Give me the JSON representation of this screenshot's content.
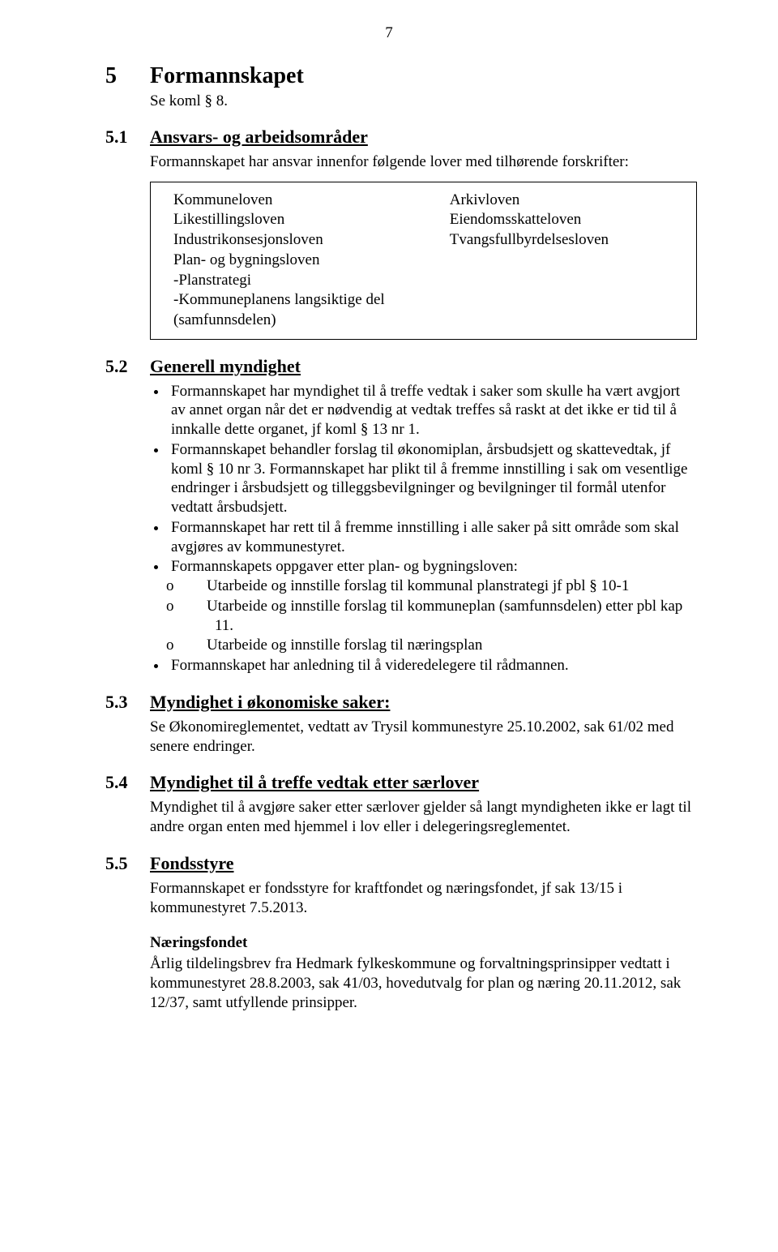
{
  "page_number": "7",
  "colors": {
    "text": "#000000",
    "background": "#ffffff",
    "border": "#000000"
  },
  "typography": {
    "body_fontsize": 19,
    "h1_fontsize": 28,
    "h2_fontsize": 22,
    "font_family": "Times New Roman"
  },
  "h1": {
    "num": "5",
    "title": "Formannskapet",
    "subtitle": "Se koml § 8."
  },
  "sec51": {
    "num": "5.1",
    "title": "Ansvars- og arbeidsområder",
    "intro": "Formannskapet har ansvar innenfor følgende lover med tilhørende forskrifter:",
    "left_laws": [
      "Kommuneloven",
      "Likestillingsloven",
      "Industrikonsesjonsloven",
      "Plan- og bygningsloven",
      "-Planstrategi",
      "-Kommuneplanens langsiktige del",
      "(samfunnsdelen)"
    ],
    "right_laws": [
      "Arkivloven",
      "Eiendomsskatteloven",
      "Tvangsfullbyrdelsesloven"
    ]
  },
  "sec52": {
    "num": "5.2",
    "title": "Generell myndighet",
    "bullets": [
      "Formannskapet har myndighet til å treffe vedtak i saker som skulle ha vært avgjort av annet organ når det er nødvendig at vedtak treffes så raskt at det ikke er tid til å innkalle dette organet, jf koml § 13 nr 1.",
      "Formannskapet behandler forslag til økonomiplan, årsbudsjett og skattevedtak, jf koml § 10 nr 3. Formannskapet har plikt til å fremme innstilling i sak om vesentlige endringer i årsbudsjett og tilleggsbevilgninger og bevilgninger til formål utenfor vedtatt årsbudsjett.",
      "Formannskapet har rett til å fremme innstilling i alle saker på sitt område som skal avgjøres av kommunestyret.",
      "Formannskapets oppgaver etter plan- og bygningsloven:"
    ],
    "sub_o": [
      "Utarbeide og innstille forslag til kommunal planstrategi jf pbl § 10-1",
      "Utarbeide og innstille forslag til kommuneplan (samfunnsdelen) etter pbl kap 11.",
      "Utarbeide og innstille forslag til næringsplan"
    ],
    "bullet_last": "Formannskapet har anledning til å videredelegere til rådmannen."
  },
  "sec53": {
    "num": "5.3",
    "title": "Myndighet i økonomiske saker:",
    "body": "Se Økonomireglementet, vedtatt av Trysil kommunestyre 25.10.2002, sak 61/02 med senere endringer."
  },
  "sec54": {
    "num": "5.4",
    "title": "Myndighet til å treffe vedtak etter særlover",
    "body": "Myndighet til å avgjøre saker etter særlover gjelder så langt myndigheten ikke er lagt til andre organ enten med hjemmel i lov eller i delegeringsreglementet."
  },
  "sec55": {
    "num": "5.5",
    "title": "Fondsstyre",
    "body1": "Formannskapet er fondsstyre for kraftfondet og næringsfondet, jf sak 13/15 i kommunestyret 7.5.2013.",
    "sub_heading": "Næringsfondet",
    "body2": "Årlig tildelingsbrev fra Hedmark fylkeskommune og forvaltningsprinsipper vedtatt i kommunestyret 28.8.2003, sak 41/03, hovedutvalg for plan og næring 20.11.2012, sak 12/37, samt utfyllende prinsipper."
  }
}
